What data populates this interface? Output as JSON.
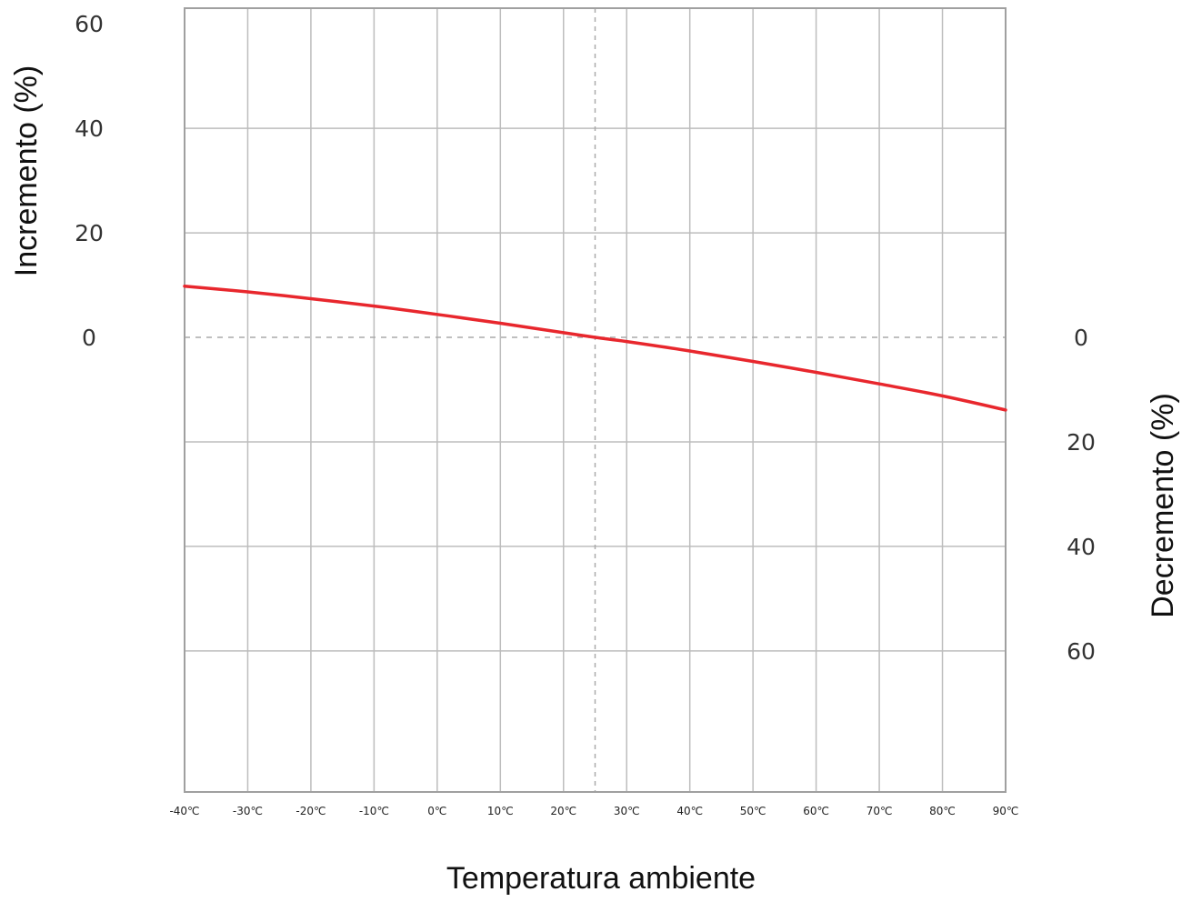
{
  "chart_data": {
    "type": "line",
    "title": "",
    "xlabel": "Temperatura ambiente",
    "ylabel_left": "Incremento (%)",
    "ylabel_right": "Decremento (%)",
    "x_tick_labels": [
      "-40℃",
      "-30℃",
      "-20℃",
      "-10℃",
      "0℃",
      "10℃",
      "20℃",
      "30℃",
      "40℃",
      "50℃",
      "60℃",
      "70℃",
      "80℃",
      "90℃"
    ],
    "x_ticks": [
      -40,
      -30,
      -20,
      -10,
      0,
      10,
      20,
      30,
      40,
      50,
      60,
      70,
      80,
      90
    ],
    "xlim": [
      -40,
      90
    ],
    "ylim": [
      -87,
      63
    ],
    "y_ticks_left": [
      {
        "value": 60,
        "label": "60"
      },
      {
        "value": 40,
        "label": "40"
      },
      {
        "value": 20,
        "label": "20"
      },
      {
        "value": 0,
        "label": "0"
      }
    ],
    "y_ticks_right": [
      {
        "value": 0,
        "label": "0"
      },
      {
        "value": -20,
        "label": "20"
      },
      {
        "value": -40,
        "label": "40"
      },
      {
        "value": -60,
        "label": "60"
      }
    ],
    "y_gridlines": [
      40,
      20,
      0,
      -20,
      -40,
      -60
    ],
    "reference_lines": {
      "y_dashed": 0,
      "x_dashed": 25
    },
    "grid": true,
    "series": [
      {
        "color": "#e8272d",
        "x": [
          -40,
          -30,
          -20,
          -10,
          0,
          10,
          20,
          25,
          30,
          40,
          50,
          60,
          70,
          80,
          90
        ],
        "y": [
          9.8,
          8.7,
          7.4,
          6.0,
          4.4,
          2.7,
          0.9,
          0.0,
          -0.8,
          -2.6,
          -4.6,
          -6.7,
          -8.9,
          -11.2,
          -13.9
        ]
      }
    ],
    "colors": {
      "grid": "#bdbdbd",
      "frame": "#a0a0a0",
      "reference": "#aaaaaa",
      "line": "#e8272d"
    }
  }
}
